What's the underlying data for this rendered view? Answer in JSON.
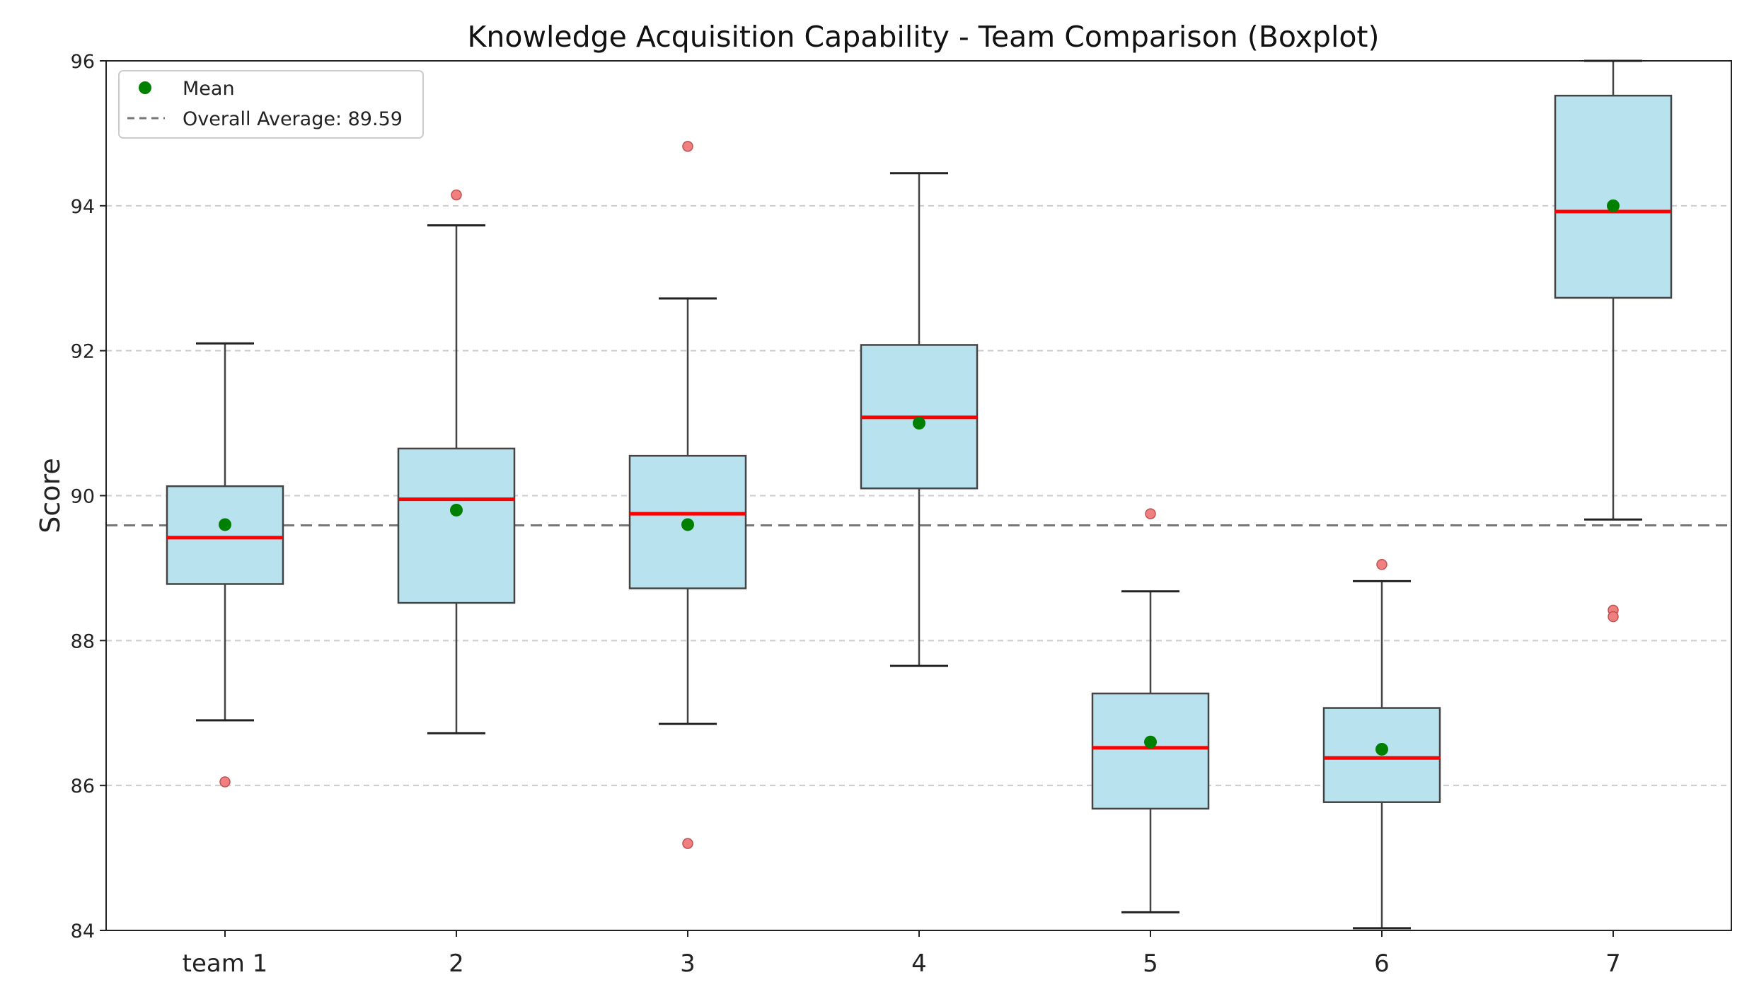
{
  "chart_data": {
    "type": "boxplot",
    "title": "Knowledge Acquisition Capability - Team Comparison (Boxplot)",
    "xlabel": "",
    "ylabel": "Score",
    "ylim": [
      84,
      96
    ],
    "yticks": [
      84,
      86,
      88,
      90,
      92,
      94,
      96
    ],
    "grid": "horizontal dashed",
    "legend_position": "top-left",
    "legend": {
      "mean_label": "Mean",
      "average_label": "Overall Average: 89.59"
    },
    "overall_average": 89.59,
    "categories": [
      "team 1",
      "2",
      "3",
      "4",
      "5",
      "6",
      "7"
    ],
    "boxes": [
      {
        "whisker_low": 86.9,
        "q1": 88.78,
        "median": 89.42,
        "q3": 90.13,
        "whisker_high": 92.1,
        "mean": 89.6,
        "outliers": [
          86.05
        ]
      },
      {
        "whisker_low": 86.72,
        "q1": 88.52,
        "median": 89.95,
        "q3": 90.65,
        "whisker_high": 93.73,
        "mean": 89.8,
        "outliers": [
          94.15
        ]
      },
      {
        "whisker_low": 86.85,
        "q1": 88.72,
        "median": 89.75,
        "q3": 90.55,
        "whisker_high": 92.72,
        "mean": 89.6,
        "outliers": [
          94.82,
          85.2
        ]
      },
      {
        "whisker_low": 87.65,
        "q1": 90.1,
        "median": 91.08,
        "q3": 92.08,
        "whisker_high": 94.45,
        "mean": 91.0,
        "outliers": []
      },
      {
        "whisker_low": 84.25,
        "q1": 85.68,
        "median": 86.52,
        "q3": 87.27,
        "whisker_high": 88.68,
        "mean": 86.6,
        "outliers": [
          89.75
        ]
      },
      {
        "whisker_low": 84.03,
        "q1": 85.77,
        "median": 86.38,
        "q3": 87.07,
        "whisker_high": 88.82,
        "mean": 86.5,
        "outliers": [
          89.05
        ]
      },
      {
        "whisker_low": 89.67,
        "q1": 92.73,
        "median": 93.92,
        "q3": 95.52,
        "whisker_high": 96.0,
        "mean": 94.0,
        "outliers": [
          88.42,
          88.33
        ]
      }
    ],
    "colors": {
      "box_fill": "#b8e2ed",
      "box_edge": "#444444",
      "median": "#ff0000",
      "mean": "#008000",
      "outlier": "#f08080",
      "average_line": "#777777",
      "grid": "#cccccc"
    }
  }
}
